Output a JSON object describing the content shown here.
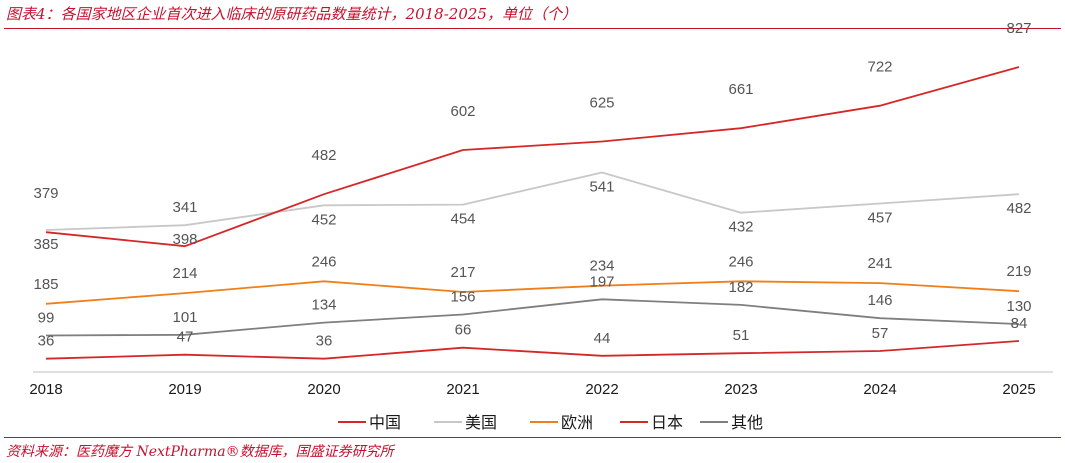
{
  "header": {
    "title": "图表4：各国家地区企业首次进入临床的原研药品数量统计，2018-2025，单位（个）"
  },
  "footer": {
    "source": "资料来源：医药魔方 NextPharma®数据库，国盛证券研究所"
  },
  "chart_data": {
    "type": "line",
    "title": "图表4：各国家地区企业首次进入临床的原研药品数量统计，2018-2025，单位（个）",
    "categories": [
      "2018",
      "2019",
      "2020",
      "2021",
      "2022",
      "2023",
      "2024",
      "2025"
    ],
    "series": [
      {
        "name": "中国",
        "color": "#d62728",
        "values": [
          379,
          341,
          482,
          602,
          625,
          661,
          722,
          827
        ]
      },
      {
        "name": "美国",
        "color": "#c8c8c8",
        "values": [
          385,
          398,
          452,
          454,
          541,
          432,
          457,
          482
        ]
      },
      {
        "name": "欧洲",
        "color": "#f07f1a",
        "values": [
          185,
          214,
          246,
          217,
          234,
          246,
          241,
          219
        ]
      },
      {
        "name": "日本",
        "color": "#d62728",
        "values": [
          36,
          47,
          36,
          66,
          44,
          51,
          57,
          84
        ]
      },
      {
        "name": "其他",
        "color": "#7f7f7f",
        "values": [
          99,
          101,
          134,
          156,
          197,
          182,
          146,
          130
        ]
      }
    ],
    "ylim": [
      0,
      900
    ],
    "grid": false,
    "legend": "bottom"
  }
}
